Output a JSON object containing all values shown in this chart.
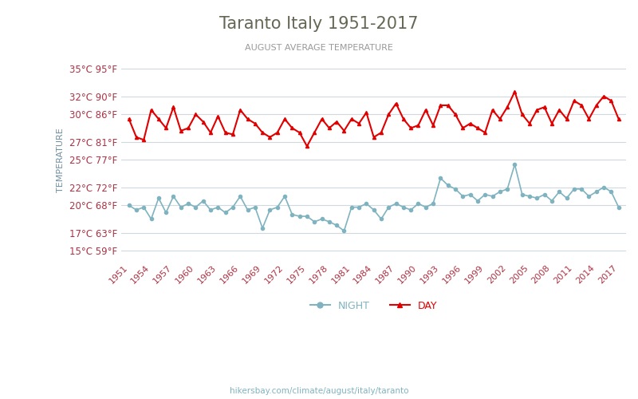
{
  "title": "Taranto Italy 1951-2017",
  "subtitle": "AUGUST AVERAGE TEMPERATURE",
  "ylabel": "TEMPERATURE",
  "footer": "hikersbay.com/climate/august/italy/taranto",
  "years": [
    1951,
    1952,
    1953,
    1954,
    1955,
    1956,
    1957,
    1958,
    1959,
    1960,
    1961,
    1962,
    1963,
    1964,
    1965,
    1966,
    1967,
    1968,
    1969,
    1970,
    1971,
    1972,
    1973,
    1974,
    1975,
    1976,
    1977,
    1978,
    1979,
    1980,
    1981,
    1982,
    1983,
    1984,
    1985,
    1986,
    1987,
    1988,
    1989,
    1990,
    1991,
    1992,
    1993,
    1994,
    1995,
    1996,
    1997,
    1998,
    1999,
    2000,
    2001,
    2002,
    2003,
    2004,
    2005,
    2006,
    2007,
    2008,
    2009,
    2010,
    2011,
    2012,
    2013,
    2014,
    2015,
    2016,
    2017
  ],
  "day_temps": [
    29.5,
    27.5,
    27.2,
    30.5,
    29.5,
    28.5,
    30.8,
    28.2,
    28.5,
    30.0,
    29.2,
    28.0,
    29.8,
    28.0,
    27.8,
    30.5,
    29.5,
    29.0,
    28.0,
    27.5,
    28.0,
    29.5,
    28.5,
    28.0,
    26.5,
    28.0,
    29.5,
    28.5,
    29.2,
    28.2,
    29.5,
    29.0,
    30.2,
    27.5,
    28.0,
    30.0,
    31.2,
    29.5,
    28.5,
    28.8,
    30.5,
    28.8,
    31.0,
    31.0,
    30.0,
    28.5,
    29.0,
    28.5,
    28.0,
    30.5,
    29.5,
    30.8,
    32.5,
    30.0,
    29.0,
    30.5,
    30.8,
    29.0,
    30.5,
    29.5,
    31.5,
    31.0,
    29.5,
    31.0,
    32.0,
    31.5,
    29.5
  ],
  "night_temps": [
    20.0,
    19.5,
    19.8,
    18.5,
    20.8,
    19.2,
    21.0,
    19.8,
    20.2,
    19.8,
    20.5,
    19.5,
    19.8,
    19.2,
    19.8,
    21.0,
    19.5,
    19.8,
    17.5,
    19.5,
    19.8,
    21.0,
    19.0,
    18.8,
    18.8,
    18.2,
    18.5,
    18.2,
    17.8,
    17.2,
    19.8,
    19.8,
    20.2,
    19.5,
    18.5,
    19.8,
    20.2,
    19.8,
    19.5,
    20.2,
    19.8,
    20.2,
    23.0,
    22.2,
    21.8,
    21.0,
    21.2,
    20.5,
    21.2,
    21.0,
    21.5,
    21.8,
    24.5,
    21.2,
    21.0,
    20.8,
    21.2,
    20.5,
    21.5,
    20.8,
    21.8,
    21.8,
    21.0,
    21.5,
    22.0,
    21.5,
    19.8
  ],
  "day_color": "#e00000",
  "night_color": "#7fb3bf",
  "background_color": "#ffffff",
  "grid_color": "#d0d8e0",
  "title_color": "#666655",
  "subtitle_color": "#999999",
  "ylabel_color": "#7090a0",
  "tick_color": "#aa3344",
  "xtick_color": "#aa3344",
  "yticks_celsius": [
    15,
    17,
    20,
    22,
    25,
    27,
    30,
    32,
    35
  ],
  "yticks_fahrenheit": [
    59,
    63,
    68,
    72,
    77,
    81,
    86,
    90,
    95
  ],
  "ylim": [
    14,
    36
  ],
  "legend_night": "NIGHT",
  "legend_day": "DAY"
}
